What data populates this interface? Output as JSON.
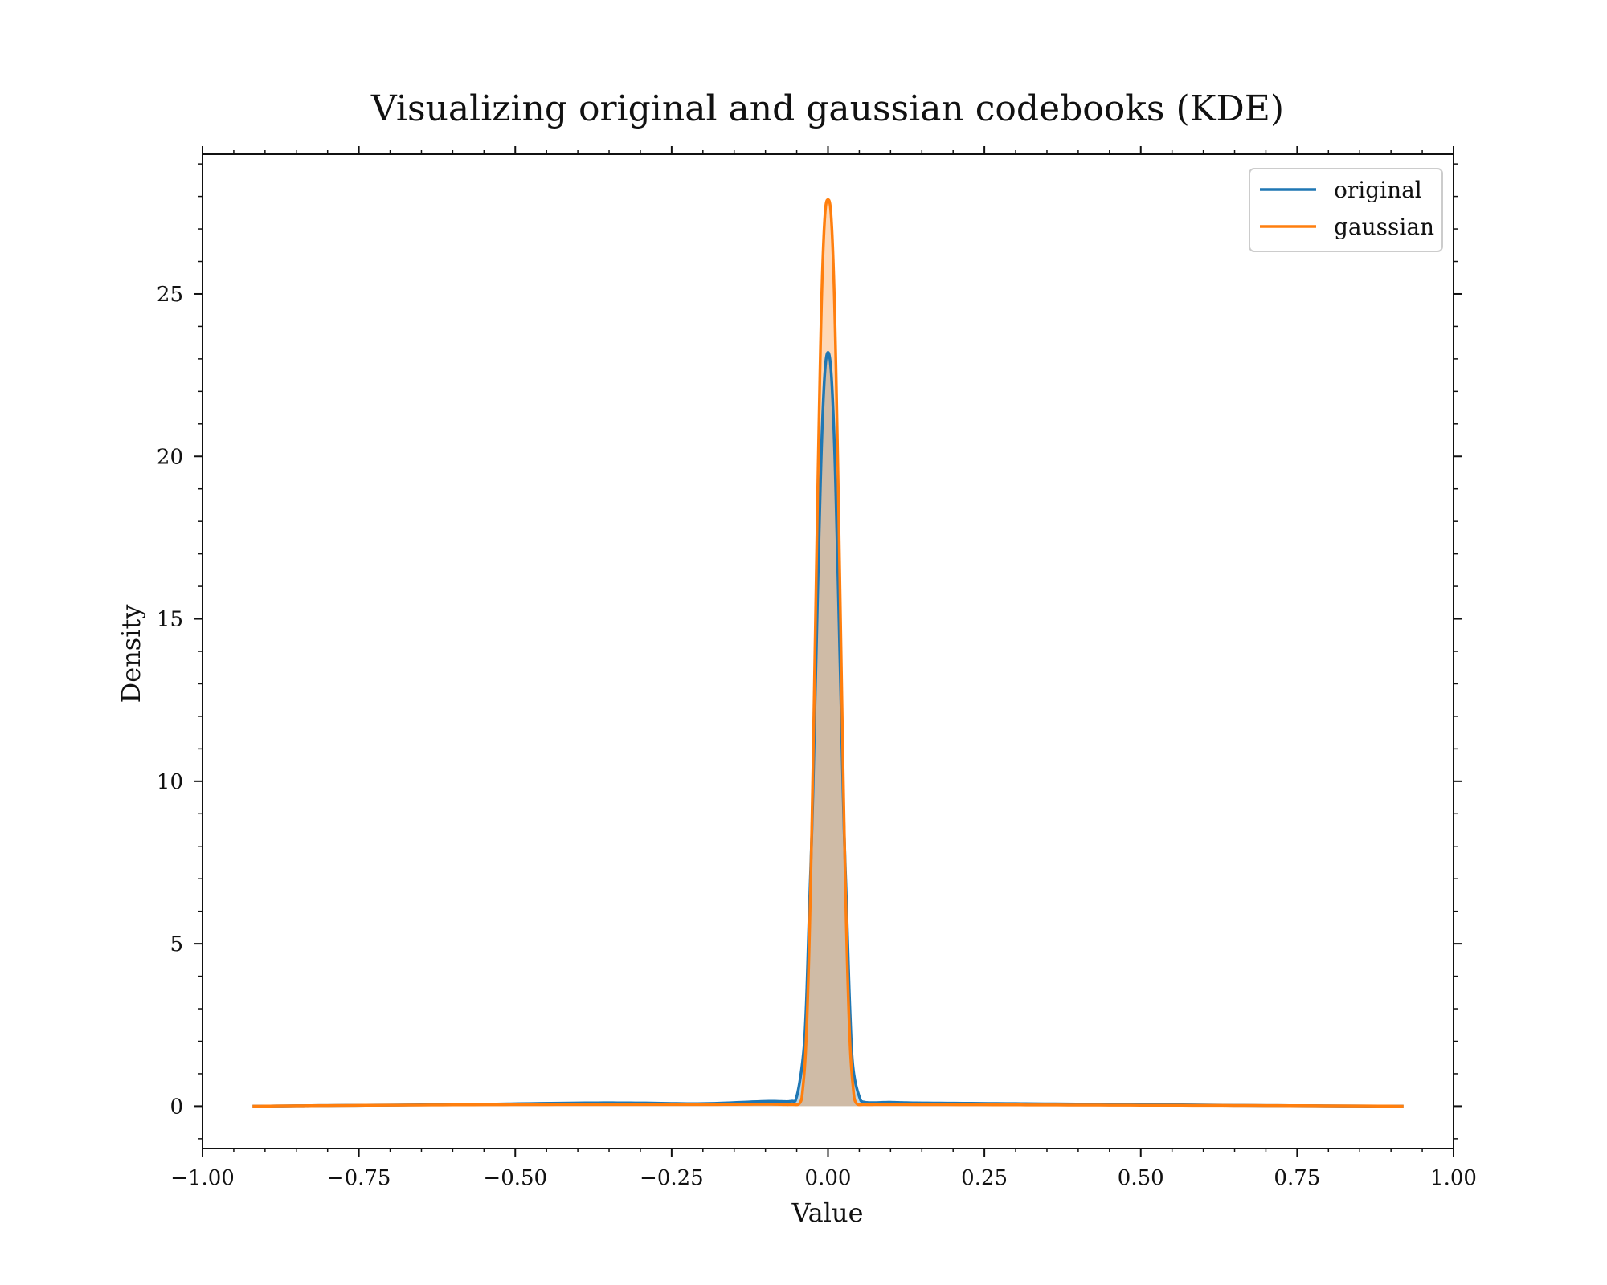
{
  "chart_data": {
    "type": "line",
    "title": "Visualizing original and gaussian codebooks (KDE)",
    "xlabel": "Value",
    "ylabel": "Density",
    "xlim": [
      -1.0,
      1.0
    ],
    "ylim": [
      -1.3,
      29.3
    ],
    "x_ticks": [
      -1.0,
      -0.75,
      -0.5,
      -0.25,
      0.0,
      0.25,
      0.5,
      0.75,
      1.0
    ],
    "x_tick_labels": [
      "−1.00",
      "−0.75",
      "−0.50",
      "−0.25",
      "0.00",
      "0.25",
      "0.50",
      "0.75",
      "1.00"
    ],
    "y_ticks": [
      0,
      5,
      10,
      15,
      20,
      25
    ],
    "y_tick_labels": [
      "0",
      "5",
      "10",
      "15",
      "20",
      "25"
    ],
    "grid": false,
    "legend_position": "top-right",
    "series": [
      {
        "name": "original",
        "color": "#1f77b4",
        "fill": true,
        "x": [
          -0.92,
          -0.8,
          -0.6,
          -0.4,
          -0.3,
          -0.2,
          -0.1,
          -0.06,
          -0.05,
          -0.04,
          -0.035,
          -0.03,
          -0.025,
          -0.02,
          -0.015,
          -0.01,
          -0.005,
          0.0,
          0.005,
          0.01,
          0.015,
          0.02,
          0.025,
          0.03,
          0.035,
          0.04,
          0.05,
          0.06,
          0.1,
          0.15,
          0.3,
          0.5,
          0.7,
          0.92
        ],
        "y": [
          0.0,
          0.02,
          0.05,
          0.1,
          0.1,
          0.08,
          0.15,
          0.15,
          0.3,
          1.5,
          3.0,
          6.0,
          9.0,
          13.0,
          17.0,
          20.5,
          22.6,
          23.2,
          22.6,
          20.5,
          17.0,
          13.0,
          9.0,
          6.0,
          3.0,
          1.2,
          0.3,
          0.12,
          0.12,
          0.1,
          0.08,
          0.05,
          0.02,
          0.0
        ]
      },
      {
        "name": "gaussian",
        "color": "#ff7f0e",
        "fill": true,
        "x": [
          -0.92,
          -0.8,
          -0.6,
          -0.4,
          -0.2,
          -0.1,
          -0.06,
          -0.045,
          -0.04,
          -0.035,
          -0.03,
          -0.025,
          -0.02,
          -0.015,
          -0.01,
          -0.005,
          0.0,
          0.005,
          0.01,
          0.015,
          0.02,
          0.025,
          0.03,
          0.035,
          0.04,
          0.045,
          0.06,
          0.1,
          0.3,
          0.5,
          0.7,
          0.92
        ],
        "y": [
          0.0,
          0.02,
          0.04,
          0.05,
          0.05,
          0.06,
          0.05,
          0.1,
          0.6,
          2.0,
          5.0,
          9.5,
          15.0,
          20.5,
          25.0,
          27.4,
          27.9,
          27.4,
          25.0,
          20.5,
          15.0,
          9.5,
          5.0,
          2.0,
          0.6,
          0.1,
          0.05,
          0.05,
          0.04,
          0.03,
          0.02,
          0.0
        ]
      }
    ]
  }
}
